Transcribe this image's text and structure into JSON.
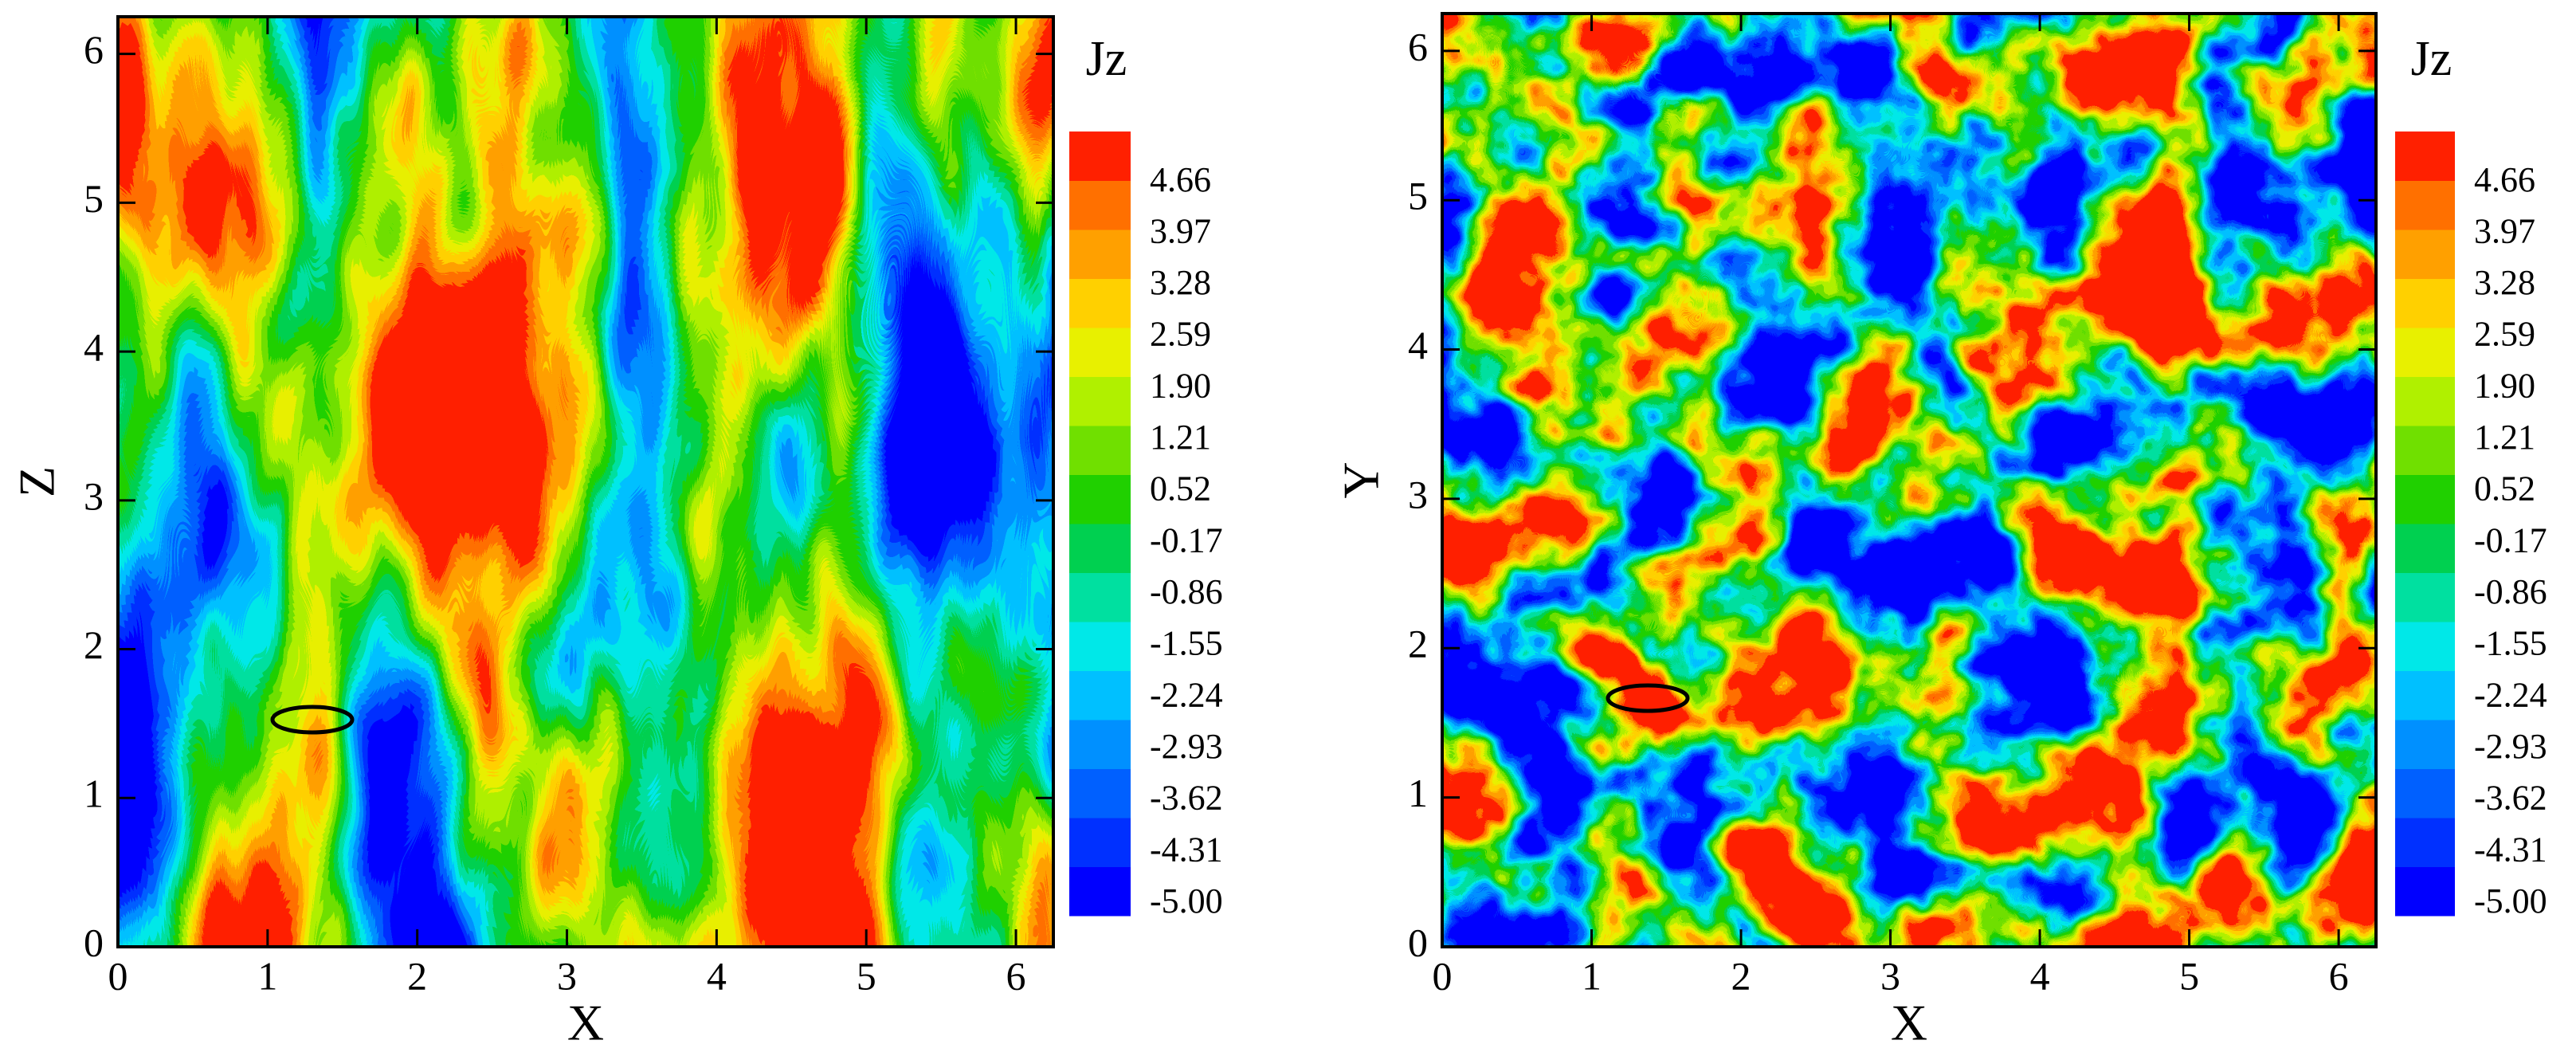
{
  "chart_data": [
    {
      "type": "contour",
      "xlabel": "X",
      "ylabel": "Z",
      "xlim": [
        0,
        6.25
      ],
      "ylim": [
        0,
        6.25
      ],
      "xticks": [
        0,
        1,
        2,
        3,
        4,
        5,
        6
      ],
      "yticks": [
        0,
        1,
        2,
        3,
        4,
        5,
        6
      ],
      "colorbar": {
        "title": "Jz",
        "lim": [
          -5.15,
          5.35
        ],
        "colors": [
          "#0000ff",
          "#0030ff",
          "#0060ff",
          "#0090ff",
          "#00c0ff",
          "#00e8e8",
          "#00e0a0",
          "#00d050",
          "#20d000",
          "#70e000",
          "#b0f000",
          "#e8f000",
          "#ffd000",
          "#ffa000",
          "#ff7000",
          "#ff2000"
        ],
        "ticks": [
          4.66,
          3.97,
          3.28,
          2.59,
          {
            "value": 1.9,
            "label": "1.90"
          },
          1.21,
          0.52,
          -0.17,
          -0.86,
          -1.55,
          -2.24,
          -2.93,
          -3.62,
          -4.31,
          {
            "value": -5,
            "label": "-5.00"
          }
        ]
      }
    },
    {
      "type": "contour",
      "xlabel": "X",
      "ylabel": "Y",
      "xlim": [
        0,
        6.25
      ],
      "ylim": [
        0,
        6.25
      ],
      "xticks": [
        0,
        1,
        2,
        3,
        4,
        5,
        6
      ],
      "yticks": [
        0,
        1,
        2,
        3,
        4,
        5,
        6
      ],
      "colorbar": {
        "title": "Jz",
        "lim": [
          -5.15,
          5.35
        ],
        "colors": [
          "#0000ff",
          "#0030ff",
          "#0060ff",
          "#0090ff",
          "#00c0ff",
          "#00e8e8",
          "#00e0a0",
          "#00d050",
          "#20d000",
          "#70e000",
          "#b0f000",
          "#e8f000",
          "#ffd000",
          "#ffa000",
          "#ff7000",
          "#ff2000"
        ],
        "ticks": [
          4.66,
          3.97,
          3.28,
          2.59,
          {
            "value": 1.9,
            "label": "1.90"
          },
          1.21,
          0.52,
          -0.17,
          -0.86,
          -1.55,
          -2.24,
          -2.93,
          -3.62,
          -4.31,
          {
            "value": -5,
            "label": "-5.00"
          }
        ]
      }
    }
  ]
}
